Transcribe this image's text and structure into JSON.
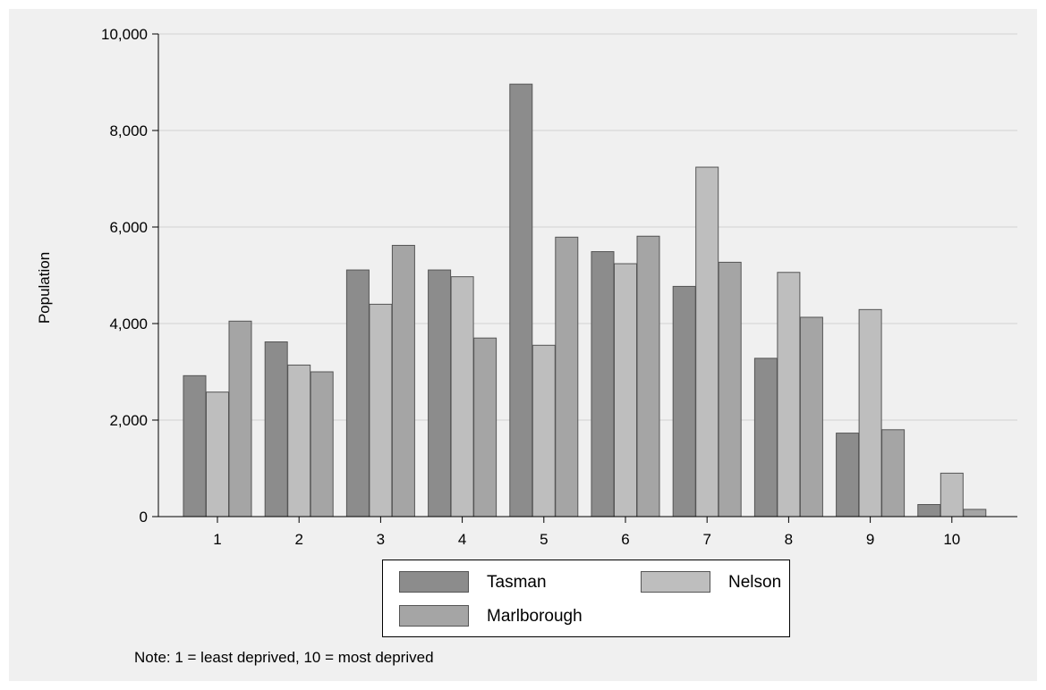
{
  "chart_data": {
    "type": "bar",
    "title": "",
    "xlabel": "",
    "ylabel": "Population",
    "ylim": [
      0,
      10000
    ],
    "yticks": [
      "0",
      "2,000",
      "4,000",
      "6,000",
      "8,000",
      "10,000"
    ],
    "ytick_values": [
      0,
      2000,
      4000,
      6000,
      8000,
      10000
    ],
    "grid": "horizontal",
    "legend_position": "bottom",
    "categories": [
      "1",
      "2",
      "3",
      "4",
      "5",
      "6",
      "7",
      "8",
      "9",
      "10"
    ],
    "series": [
      {
        "name": "Tasman",
        "color": "#8c8c8c",
        "values": [
          2920,
          3620,
          5110,
          5110,
          8960,
          5490,
          4770,
          3280,
          1730,
          250
        ]
      },
      {
        "name": "Nelson",
        "color": "#bebebe",
        "values": [
          2580,
          3140,
          4400,
          4970,
          3550,
          5240,
          7240,
          5060,
          4290,
          900
        ]
      },
      {
        "name": "Marlborough",
        "color": "#a5a5a5",
        "values": [
          4050,
          3000,
          5620,
          3700,
          5790,
          5810,
          5270,
          4130,
          1800,
          150
        ]
      }
    ],
    "note": "Note: 1 = least deprived, 10 = most deprived"
  }
}
